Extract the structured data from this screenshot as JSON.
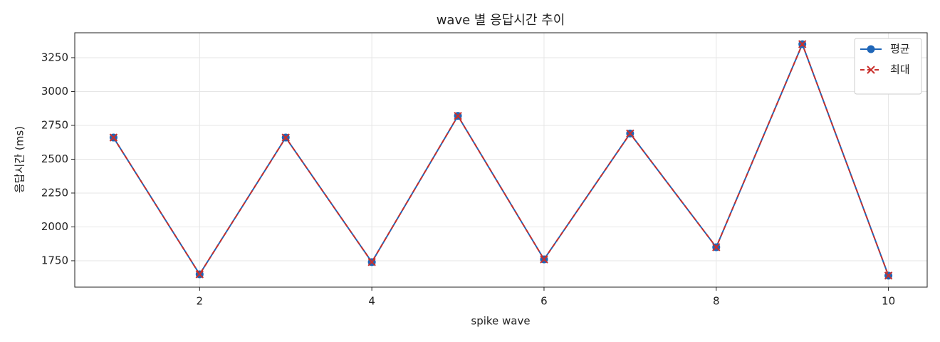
{
  "chart_data": {
    "type": "line",
    "title": "wave 별 응답시간 추이",
    "xlabel": "spike wave",
    "ylabel": "응답시간 (ms)",
    "x": [
      1,
      2,
      3,
      4,
      5,
      6,
      7,
      8,
      9,
      10
    ],
    "series": [
      {
        "name": "평균",
        "color": "#1f66b8",
        "marker": "circle",
        "dashed": false,
        "values": [
          2660,
          1650,
          2660,
          1740,
          2820,
          1760,
          2690,
          1850,
          3350,
          1640
        ]
      },
      {
        "name": "최대",
        "color": "#c9302c",
        "marker": "x",
        "dashed": true,
        "values": [
          2660,
          1650,
          2660,
          1740,
          2820,
          1760,
          2690,
          1850,
          3350,
          1640
        ]
      }
    ],
    "xlim": [
      0.55,
      10.45
    ],
    "xticks": [
      2,
      4,
      6,
      8,
      10
    ],
    "ylim": [
      1555,
      3434
    ],
    "yticks": [
      1750,
      2000,
      2250,
      2500,
      2750,
      3000,
      3250
    ],
    "grid": true,
    "legend": "upper right"
  }
}
